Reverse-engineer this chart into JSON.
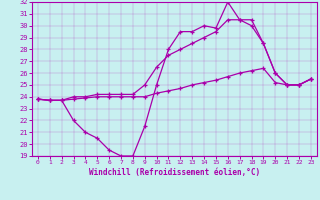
{
  "xlabel": "Windchill (Refroidissement éolien,°C)",
  "xlim": [
    -0.5,
    23.5
  ],
  "ylim": [
    19,
    32
  ],
  "yticks": [
    19,
    20,
    21,
    22,
    23,
    24,
    25,
    26,
    27,
    28,
    29,
    30,
    31,
    32
  ],
  "xticks": [
    0,
    1,
    2,
    3,
    4,
    5,
    6,
    7,
    8,
    9,
    10,
    11,
    12,
    13,
    14,
    15,
    16,
    17,
    18,
    19,
    20,
    21,
    22,
    23
  ],
  "background_color": "#c8f0f0",
  "line_color": "#aa00aa",
  "line1_x": [
    0,
    1,
    2,
    3,
    4,
    5,
    6,
    7,
    8,
    9,
    10,
    11,
    12,
    13,
    14,
    15,
    16,
    17,
    18,
    19,
    20,
    21,
    22,
    23
  ],
  "line1_y": [
    23.8,
    23.7,
    23.7,
    22.0,
    21.0,
    20.5,
    19.5,
    19.0,
    19.0,
    21.5,
    25.0,
    28.0,
    29.5,
    29.5,
    30.0,
    29.8,
    32.0,
    30.5,
    30.0,
    28.5,
    26.0,
    25.0,
    25.0,
    25.5
  ],
  "line2_x": [
    0,
    1,
    2,
    3,
    4,
    5,
    6,
    7,
    8,
    9,
    10,
    11,
    12,
    13,
    14,
    15,
    16,
    17,
    18,
    19,
    20,
    21,
    22,
    23
  ],
  "line2_y": [
    23.8,
    23.7,
    23.7,
    24.0,
    24.0,
    24.2,
    24.2,
    24.2,
    24.2,
    25.0,
    26.5,
    27.5,
    28.0,
    28.5,
    29.0,
    29.5,
    30.5,
    30.5,
    30.5,
    28.5,
    26.0,
    25.0,
    25.0,
    25.5
  ],
  "line3_x": [
    0,
    1,
    2,
    3,
    4,
    5,
    6,
    7,
    8,
    9,
    10,
    11,
    12,
    13,
    14,
    15,
    16,
    17,
    18,
    19,
    20,
    21,
    22,
    23
  ],
  "line3_y": [
    23.8,
    23.7,
    23.7,
    23.8,
    23.9,
    24.0,
    24.0,
    24.0,
    24.0,
    24.0,
    24.3,
    24.5,
    24.7,
    25.0,
    25.2,
    25.4,
    25.7,
    26.0,
    26.2,
    26.4,
    25.2,
    25.0,
    25.0,
    25.5
  ]
}
